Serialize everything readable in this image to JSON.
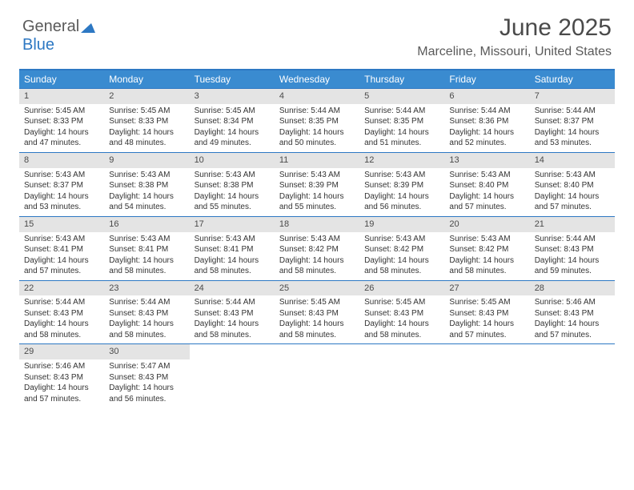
{
  "logo": {
    "word1": "General",
    "word2": "Blue"
  },
  "header": {
    "month": "June 2025",
    "location": "Marceline, Missouri, United States"
  },
  "colors": {
    "header_bg": "#3a8bd0",
    "header_text": "#ffffff",
    "border": "#2d78c3",
    "daynum_bg": "#e4e4e4",
    "text": "#333333"
  },
  "daynames": [
    "Sunday",
    "Monday",
    "Tuesday",
    "Wednesday",
    "Thursday",
    "Friday",
    "Saturday"
  ],
  "weeks": [
    [
      {
        "n": "1",
        "sunrise": "5:45 AM",
        "sunset": "8:33 PM",
        "daylight": "14 hours and 47 minutes."
      },
      {
        "n": "2",
        "sunrise": "5:45 AM",
        "sunset": "8:33 PM",
        "daylight": "14 hours and 48 minutes."
      },
      {
        "n": "3",
        "sunrise": "5:45 AM",
        "sunset": "8:34 PM",
        "daylight": "14 hours and 49 minutes."
      },
      {
        "n": "4",
        "sunrise": "5:44 AM",
        "sunset": "8:35 PM",
        "daylight": "14 hours and 50 minutes."
      },
      {
        "n": "5",
        "sunrise": "5:44 AM",
        "sunset": "8:35 PM",
        "daylight": "14 hours and 51 minutes."
      },
      {
        "n": "6",
        "sunrise": "5:44 AM",
        "sunset": "8:36 PM",
        "daylight": "14 hours and 52 minutes."
      },
      {
        "n": "7",
        "sunrise": "5:44 AM",
        "sunset": "8:37 PM",
        "daylight": "14 hours and 53 minutes."
      }
    ],
    [
      {
        "n": "8",
        "sunrise": "5:43 AM",
        "sunset": "8:37 PM",
        "daylight": "14 hours and 53 minutes."
      },
      {
        "n": "9",
        "sunrise": "5:43 AM",
        "sunset": "8:38 PM",
        "daylight": "14 hours and 54 minutes."
      },
      {
        "n": "10",
        "sunrise": "5:43 AM",
        "sunset": "8:38 PM",
        "daylight": "14 hours and 55 minutes."
      },
      {
        "n": "11",
        "sunrise": "5:43 AM",
        "sunset": "8:39 PM",
        "daylight": "14 hours and 55 minutes."
      },
      {
        "n": "12",
        "sunrise": "5:43 AM",
        "sunset": "8:39 PM",
        "daylight": "14 hours and 56 minutes."
      },
      {
        "n": "13",
        "sunrise": "5:43 AM",
        "sunset": "8:40 PM",
        "daylight": "14 hours and 57 minutes."
      },
      {
        "n": "14",
        "sunrise": "5:43 AM",
        "sunset": "8:40 PM",
        "daylight": "14 hours and 57 minutes."
      }
    ],
    [
      {
        "n": "15",
        "sunrise": "5:43 AM",
        "sunset": "8:41 PM",
        "daylight": "14 hours and 57 minutes."
      },
      {
        "n": "16",
        "sunrise": "5:43 AM",
        "sunset": "8:41 PM",
        "daylight": "14 hours and 58 minutes."
      },
      {
        "n": "17",
        "sunrise": "5:43 AM",
        "sunset": "8:41 PM",
        "daylight": "14 hours and 58 minutes."
      },
      {
        "n": "18",
        "sunrise": "5:43 AM",
        "sunset": "8:42 PM",
        "daylight": "14 hours and 58 minutes."
      },
      {
        "n": "19",
        "sunrise": "5:43 AM",
        "sunset": "8:42 PM",
        "daylight": "14 hours and 58 minutes."
      },
      {
        "n": "20",
        "sunrise": "5:43 AM",
        "sunset": "8:42 PM",
        "daylight": "14 hours and 58 minutes."
      },
      {
        "n": "21",
        "sunrise": "5:44 AM",
        "sunset": "8:43 PM",
        "daylight": "14 hours and 59 minutes."
      }
    ],
    [
      {
        "n": "22",
        "sunrise": "5:44 AM",
        "sunset": "8:43 PM",
        "daylight": "14 hours and 58 minutes."
      },
      {
        "n": "23",
        "sunrise": "5:44 AM",
        "sunset": "8:43 PM",
        "daylight": "14 hours and 58 minutes."
      },
      {
        "n": "24",
        "sunrise": "5:44 AM",
        "sunset": "8:43 PM",
        "daylight": "14 hours and 58 minutes."
      },
      {
        "n": "25",
        "sunrise": "5:45 AM",
        "sunset": "8:43 PM",
        "daylight": "14 hours and 58 minutes."
      },
      {
        "n": "26",
        "sunrise": "5:45 AM",
        "sunset": "8:43 PM",
        "daylight": "14 hours and 58 minutes."
      },
      {
        "n": "27",
        "sunrise": "5:45 AM",
        "sunset": "8:43 PM",
        "daylight": "14 hours and 57 minutes."
      },
      {
        "n": "28",
        "sunrise": "5:46 AM",
        "sunset": "8:43 PM",
        "daylight": "14 hours and 57 minutes."
      }
    ],
    [
      {
        "n": "29",
        "sunrise": "5:46 AM",
        "sunset": "8:43 PM",
        "daylight": "14 hours and 57 minutes."
      },
      {
        "n": "30",
        "sunrise": "5:47 AM",
        "sunset": "8:43 PM",
        "daylight": "14 hours and 56 minutes."
      },
      {
        "empty": true
      },
      {
        "empty": true
      },
      {
        "empty": true
      },
      {
        "empty": true
      },
      {
        "empty": true
      }
    ]
  ],
  "labels": {
    "sunrise": "Sunrise: ",
    "sunset": "Sunset: ",
    "daylight": "Daylight: "
  }
}
